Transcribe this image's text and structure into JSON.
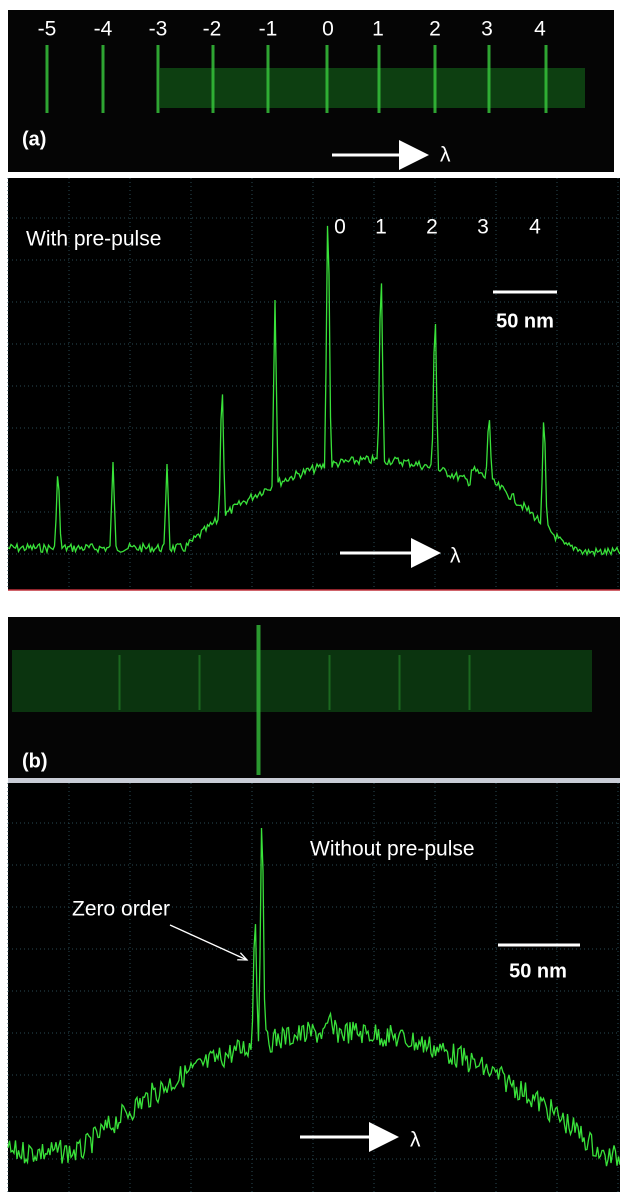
{
  "panel_a": {
    "label": "(a)",
    "orders": [
      "-5",
      "-4",
      "-3",
      "-2",
      "-1",
      "0",
      "1",
      "2",
      "3",
      "4"
    ],
    "direction": "λ",
    "plot": {
      "annotation": "With pre-pulse",
      "orders": [
        "0",
        "1",
        "2",
        "3",
        "4"
      ],
      "scale_bar": "50 nm",
      "direction": "λ"
    }
  },
  "panel_b": {
    "label": "(b)",
    "plot": {
      "annotation": "Without pre-pulse",
      "callout": "Zero order",
      "scale_bar": "50 nm",
      "direction": "λ"
    }
  }
}
